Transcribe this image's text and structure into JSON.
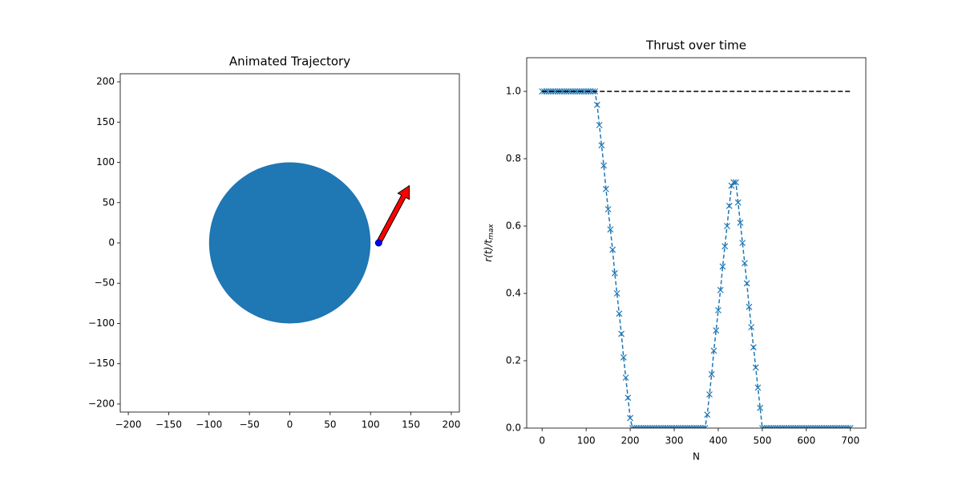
{
  "chart_data": [
    {
      "type": "scatter",
      "title": "Animated Trajectory",
      "xlim": [
        -210,
        210
      ],
      "ylim": [
        -210,
        210
      ],
      "xticks": [
        {
          "value": -200,
          "label": "−200"
        },
        {
          "value": -150,
          "label": "−150"
        },
        {
          "value": -100,
          "label": "−100"
        },
        {
          "value": -50,
          "label": "−50"
        },
        0,
        50,
        100,
        150,
        200
      ],
      "yticks": [
        {
          "value": -200,
          "label": "−200"
        },
        {
          "value": -150,
          "label": "−150"
        },
        {
          "value": -100,
          "label": "−100"
        },
        {
          "value": -50,
          "label": "−50"
        },
        0,
        50,
        100,
        150,
        200
      ],
      "circle": {
        "x": 0,
        "y": 0,
        "r": 100,
        "color": "#1f77b4"
      },
      "point": {
        "x": 110,
        "y": 0,
        "color": "#0000ff"
      },
      "arrow": {
        "x": 110,
        "y": 0,
        "dx": 38,
        "dy": 71,
        "color": "#ff0000"
      }
    },
    {
      "type": "line",
      "title": "Thrust over time",
      "xlabel": "N",
      "ylabel": "r(t)/t",
      "ylabel_sub": "max",
      "xlim": [
        -35,
        735
      ],
      "ylim": [
        0,
        1.1
      ],
      "xticks": [
        0,
        100,
        200,
        300,
        400,
        500,
        600,
        700
      ],
      "yticks": [
        {
          "value": 0,
          "label": "0.0"
        },
        0.2,
        0.4,
        0.6,
        0.8,
        {
          "value": 1,
          "label": "1.0"
        }
      ],
      "series": [
        {
          "color": "#1f77b4",
          "marker": "x",
          "x": [
            0,
            5,
            10,
            15,
            20,
            25,
            30,
            35,
            40,
            45,
            50,
            55,
            60,
            65,
            70,
            75,
            80,
            85,
            90,
            95,
            100,
            105,
            110,
            115,
            120,
            125,
            130,
            135,
            140,
            145,
            150,
            155,
            160,
            165,
            170,
            175,
            180,
            185,
            190,
            195,
            200,
            205,
            210,
            215,
            220,
            225,
            230,
            235,
            240,
            245,
            250,
            255,
            260,
            265,
            270,
            275,
            280,
            285,
            290,
            295,
            300,
            305,
            310,
            315,
            320,
            325,
            330,
            335,
            340,
            345,
            350,
            355,
            360,
            365,
            370,
            375,
            380,
            385,
            390,
            395,
            400,
            405,
            410,
            415,
            420,
            425,
            430,
            435,
            440,
            445,
            450,
            455,
            460,
            465,
            470,
            475,
            480,
            485,
            490,
            495,
            500,
            505,
            510,
            515,
            520,
            525,
            530,
            535,
            540,
            545,
            550,
            555,
            560,
            565,
            570,
            575,
            580,
            585,
            590,
            595,
            600,
            605,
            610,
            615,
            620,
            625,
            630,
            635,
            640,
            645,
            650,
            655,
            660,
            665,
            670,
            675,
            680,
            685,
            690,
            695,
            700
          ],
          "values": [
            1,
            1,
            1,
            1,
            1,
            1,
            1,
            1,
            1,
            1,
            1,
            1,
            1,
            1,
            1,
            1,
            1,
            1,
            1,
            1,
            1,
            1,
            1,
            1,
            1,
            0.96,
            0.9,
            0.84,
            0.78,
            0.71,
            0.65,
            0.59,
            0.53,
            0.46,
            0.4,
            0.34,
            0.28,
            0.21,
            0.15,
            0.09,
            0.03,
            0,
            0,
            0,
            0,
            0,
            0,
            0,
            0,
            0,
            0,
            0,
            0,
            0,
            0,
            0,
            0,
            0,
            0,
            0,
            0,
            0,
            0,
            0,
            0,
            0,
            0,
            0,
            0,
            0,
            0,
            0,
            0,
            0,
            0,
            0.04,
            0.1,
            0.16,
            0.23,
            0.29,
            0.35,
            0.41,
            0.48,
            0.54,
            0.6,
            0.66,
            0.72,
            0.73,
            0.73,
            0.67,
            0.61,
            0.55,
            0.49,
            0.43,
            0.36,
            0.3,
            0.24,
            0.18,
            0.12,
            0.06,
            0,
            0,
            0,
            0,
            0,
            0,
            0,
            0,
            0,
            0,
            0,
            0,
            0,
            0,
            0,
            0,
            0,
            0,
            0,
            0,
            0,
            0,
            0,
            0,
            0,
            0,
            0,
            0,
            0,
            0,
            0,
            0,
            0,
            0,
            0,
            0,
            0,
            0,
            0,
            0,
            0
          ]
        }
      ],
      "hline": {
        "y": 1,
        "xmin": 0,
        "xmax": 700,
        "color": "#000000"
      }
    }
  ]
}
